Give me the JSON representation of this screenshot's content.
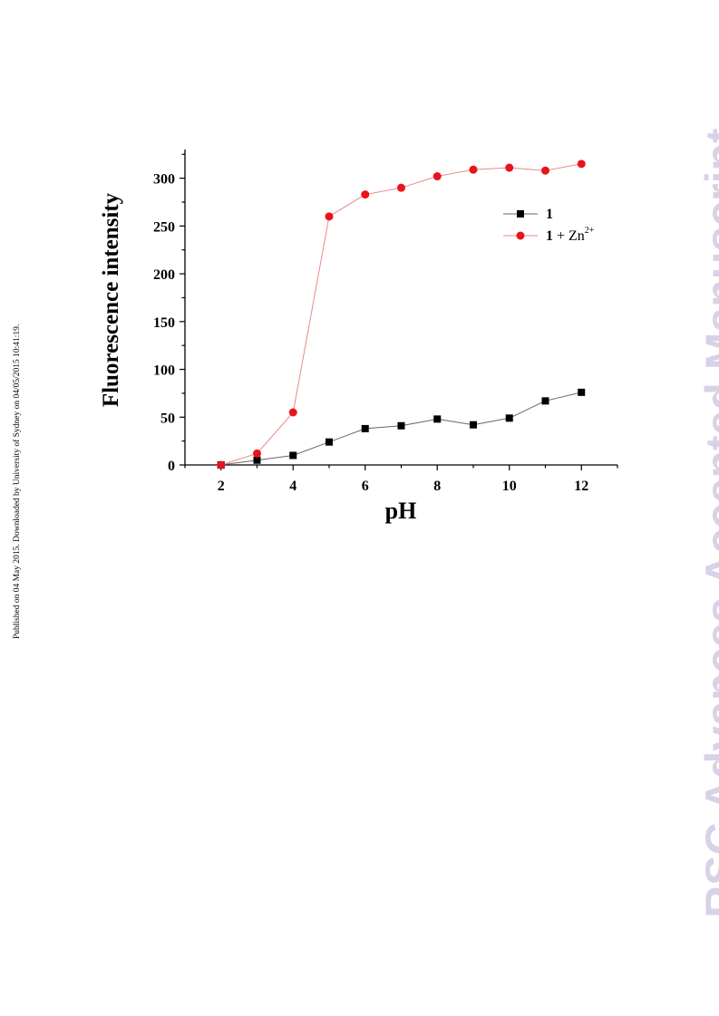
{
  "page": {
    "side_note": "Published on 04 May 2015. Downloaded by University of Sydney on 04/05/2015 10:41:19.",
    "watermark": "RSC Advances Accepted Manuscript"
  },
  "chart_data": {
    "type": "line",
    "title": "",
    "xlabel": "pH",
    "ylabel": "Fluorescence intensity",
    "xlim": [
      1,
      13
    ],
    "ylim": [
      0,
      330
    ],
    "xticks": [
      2,
      4,
      6,
      8,
      10,
      12
    ],
    "yticks": [
      0,
      50,
      100,
      150,
      200,
      250,
      300
    ],
    "grid": false,
    "legend_position": "top-right",
    "series": [
      {
        "name": "1",
        "name_superscript": "",
        "color": "#000000",
        "marker": "square",
        "x": [
          2,
          3,
          4,
          5,
          6,
          7,
          8,
          9,
          10,
          11,
          12
        ],
        "values": [
          0,
          5,
          10,
          24,
          38,
          41,
          48,
          42,
          49,
          67,
          76
        ]
      },
      {
        "name": "1 + Zn",
        "name_superscript": "2+",
        "color": "#e8141c",
        "marker": "circle",
        "x": [
          2,
          3,
          4,
          5,
          6,
          7,
          8,
          9,
          10,
          11,
          12
        ],
        "values": [
          0,
          12,
          55,
          260,
          283,
          290,
          302,
          309,
          311,
          308,
          315
        ]
      }
    ]
  }
}
